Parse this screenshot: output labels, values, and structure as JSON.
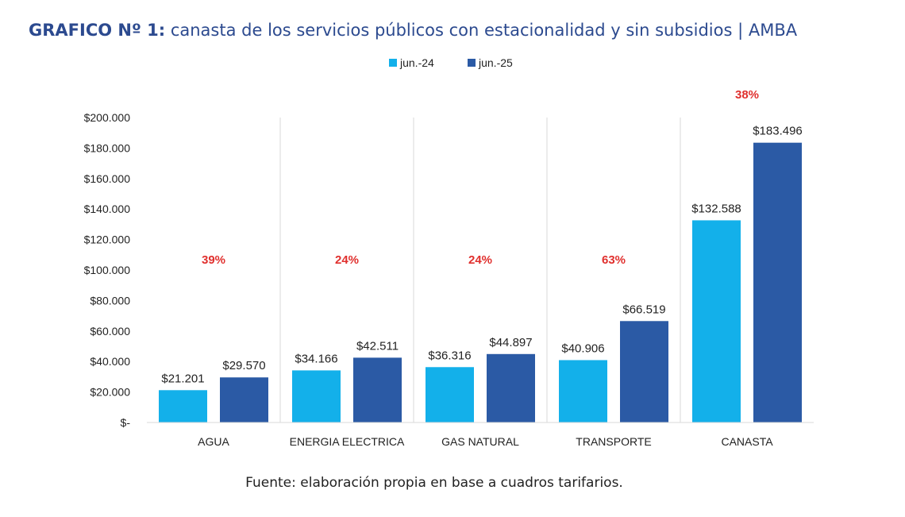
{
  "title": {
    "prefix": "GRAFICO Nº 1:",
    "text": "canasta de los servicios públicos con estacionalidad y sin subsidios | AMBA"
  },
  "source": "Fuente: elaboración propia en base a cuadros tarifarios.",
  "colors": {
    "series1": "#13b0ea",
    "series2": "#2b5aa5",
    "percent": "#e0302e",
    "grid": "#d9d9d9",
    "title": "#2c4a8f"
  },
  "chart_data": {
    "type": "bar",
    "categories": [
      "AGUA",
      "ENERGIA ELECTRICA",
      "GAS NATURAL",
      "TRANSPORTE",
      "CANASTA"
    ],
    "series": [
      {
        "name": "jun.-24",
        "values": [
          21201,
          34166,
          36316,
          40906,
          132588
        ],
        "labels": [
          "$21.201",
          "$34.166",
          "$36.316",
          "$40.906",
          "$132.588"
        ]
      },
      {
        "name": "jun.-25",
        "values": [
          29570,
          42511,
          44897,
          66519,
          183496
        ],
        "labels": [
          "$29.570",
          "$42.511",
          "$44.897",
          "$66.519",
          "$183.496"
        ]
      }
    ],
    "percent_changes": [
      "39%",
      "24%",
      "24%",
      "63%",
      "38%"
    ],
    "ylim": [
      0,
      200000
    ],
    "yticks": [
      0,
      20000,
      40000,
      60000,
      80000,
      100000,
      120000,
      140000,
      160000,
      180000,
      200000
    ],
    "ytick_labels": [
      "$-",
      "$20.000",
      "$40.000",
      "$60.000",
      "$80.000",
      "$100.000",
      "$120.000",
      "$140.000",
      "$160.000",
      "$180.000",
      "$200.000"
    ],
    "legend_position": "top-center",
    "grid": false,
    "category_separators": true
  }
}
